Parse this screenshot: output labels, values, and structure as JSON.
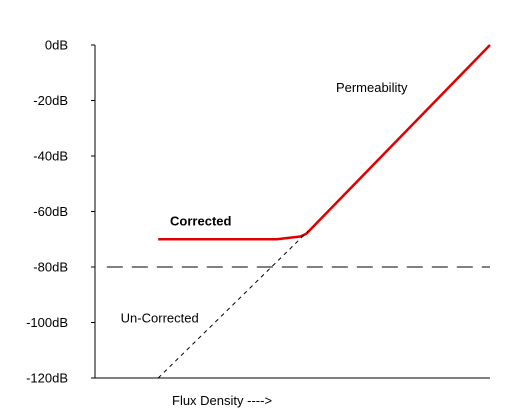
{
  "chart_data": {
    "type": "line",
    "title": "",
    "xlabel": "Flux Density ---->",
    "ylabel": "",
    "ylim": [
      -120,
      0
    ],
    "xlim": [
      0,
      10
    ],
    "grid": false,
    "y_ticks": [
      {
        "value": 0,
        "label": "0dB"
      },
      {
        "value": -20,
        "label": "-20dB"
      },
      {
        "value": -40,
        "label": "-40dB"
      },
      {
        "value": -60,
        "label": "-60dB"
      },
      {
        "value": -80,
        "label": "-80dB"
      },
      {
        "value": -100,
        "label": "-100dB"
      },
      {
        "value": -120,
        "label": "-120dB"
      }
    ],
    "series": [
      {
        "name": "Corrected",
        "style": "solid",
        "color": "#e00000",
        "points": [
          {
            "x": 1.6,
            "y": -70
          },
          {
            "x": 4.6,
            "y": -70
          },
          {
            "x": 5.2,
            "y": -69
          },
          {
            "x": 5.35,
            "y": -68
          },
          {
            "x": 10,
            "y": 0
          }
        ]
      },
      {
        "name": "Un-Corrected",
        "style": "dashed",
        "color": "#000000",
        "points": [
          {
            "x": 1.6,
            "y": -120
          },
          {
            "x": 5.4,
            "y": -67
          }
        ]
      },
      {
        "name": "",
        "style": "long-dashed",
        "color": "#000000",
        "points": [
          {
            "x": 0.3,
            "y": -80
          },
          {
            "x": 10,
            "y": -80
          }
        ]
      }
    ],
    "annotations": [
      {
        "text": "Permeability",
        "x": 6.1,
        "y": -17,
        "weight": "normal"
      },
      {
        "text": "Corrected",
        "x": 1.9,
        "y": -65,
        "weight": "bold"
      },
      {
        "text": "Un-Corrected",
        "x": 0.65,
        "y": -100,
        "weight": "normal"
      }
    ]
  }
}
